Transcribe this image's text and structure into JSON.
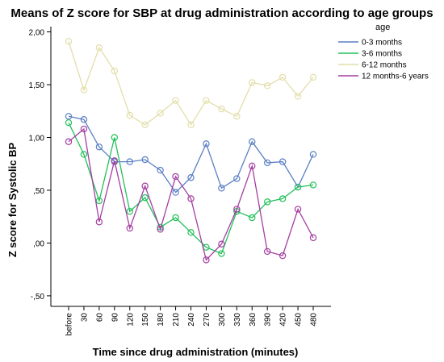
{
  "chart_data": {
    "type": "line",
    "title": "Means of Z score for SBP at drug administration according to age groups",
    "xlabel": "Time since drug administration (minutes)",
    "ylabel": "Z score for Systolic BP",
    "categories": [
      "before",
      "30",
      "60",
      "90",
      "120",
      "150",
      "180",
      "210",
      "240",
      "270",
      "300",
      "330",
      "360",
      "390",
      "420",
      "450",
      "480"
    ],
    "yticks": [
      2.0,
      1.5,
      1.0,
      0.5,
      0.0,
      -0.5
    ],
    "ytick_labels": [
      "2,00",
      "1,50",
      "1,00",
      ",50",
      ",00",
      "-,50"
    ],
    "ylim": [
      -0.6,
      2.05
    ],
    "grid": false,
    "legend": {
      "title": "age",
      "placement": "top-right"
    },
    "series": [
      {
        "name": "0-3 months",
        "color": "#5b7fc4",
        "values": [
          1.2,
          1.17,
          0.91,
          0.77,
          0.77,
          0.79,
          0.69,
          0.48,
          0.62,
          0.94,
          0.52,
          0.61,
          0.96,
          0.76,
          0.77,
          0.53,
          0.84
        ]
      },
      {
        "name": "3-6 months",
        "color": "#22c15a",
        "values": [
          1.14,
          0.84,
          0.4,
          1.0,
          0.3,
          0.43,
          0.15,
          0.24,
          0.1,
          -0.04,
          -0.1,
          0.3,
          0.24,
          0.39,
          0.42,
          0.53,
          0.55
        ]
      },
      {
        "name": "6-12 months",
        "color": "#e3deaa",
        "values": [
          1.91,
          1.45,
          1.85,
          1.63,
          1.21,
          1.12,
          1.23,
          1.35,
          1.12,
          1.35,
          1.27,
          1.2,
          1.52,
          1.49,
          1.57,
          1.39,
          1.57
        ]
      },
      {
        "name": "12 months-6 years",
        "color": "#a43fa2",
        "values": [
          0.96,
          1.08,
          0.2,
          0.78,
          0.14,
          0.54,
          0.13,
          0.63,
          0.42,
          -0.16,
          -0.01,
          0.32,
          0.73,
          -0.08,
          -0.12,
          0.32,
          0.05
        ]
      }
    ]
  }
}
